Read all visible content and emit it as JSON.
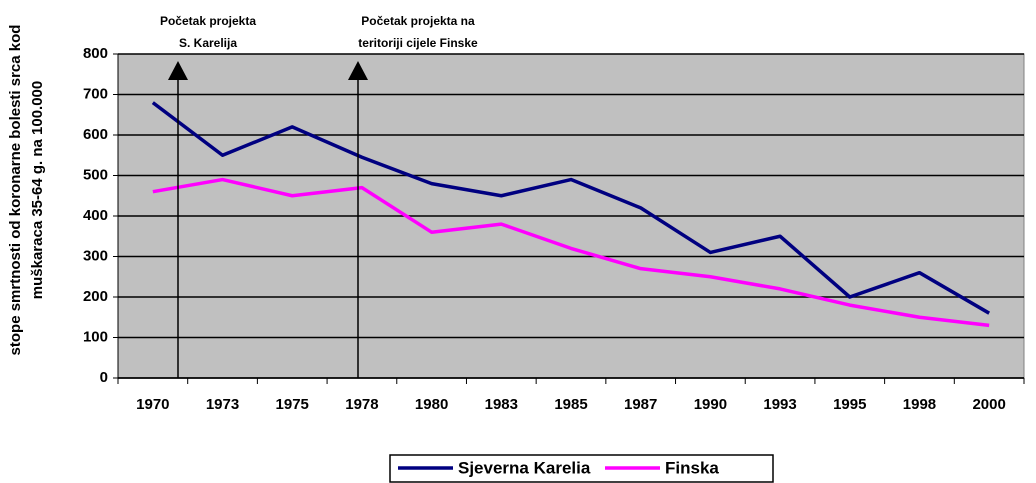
{
  "chart_data": {
    "type": "line",
    "y_label": [
      "stope smrtnosti od koronarne bolesti srca kod",
      "muškaraca 35-64 g. na 100.000"
    ],
    "annotations": [
      {
        "lines": [
          "Početak projekta",
          "S. Karelija"
        ]
      },
      {
        "lines": [
          "Početak projekta na",
          "teritoriji cijele Finske"
        ]
      }
    ],
    "categories": [
      "1970",
      "1973",
      "1975",
      "1978",
      "1980",
      "1983",
      "1985",
      "1987",
      "1990",
      "1993",
      "1995",
      "1998",
      "2000"
    ],
    "series": [
      {
        "name": "Sjeverna Karelia",
        "color": "#000080",
        "values": [
          680,
          550,
          620,
          545,
          480,
          450,
          490,
          420,
          310,
          350,
          200,
          260,
          160
        ]
      },
      {
        "name": "Finska",
        "color": "#ff00ff",
        "values": [
          460,
          490,
          450,
          470,
          360,
          380,
          320,
          270,
          250,
          220,
          180,
          150,
          130
        ]
      }
    ],
    "ylim": [
      0,
      800
    ],
    "yticks": [
      0,
      100,
      200,
      300,
      400,
      500,
      600,
      700,
      800
    ],
    "grid": true,
    "background": "#c0c0c0"
  }
}
